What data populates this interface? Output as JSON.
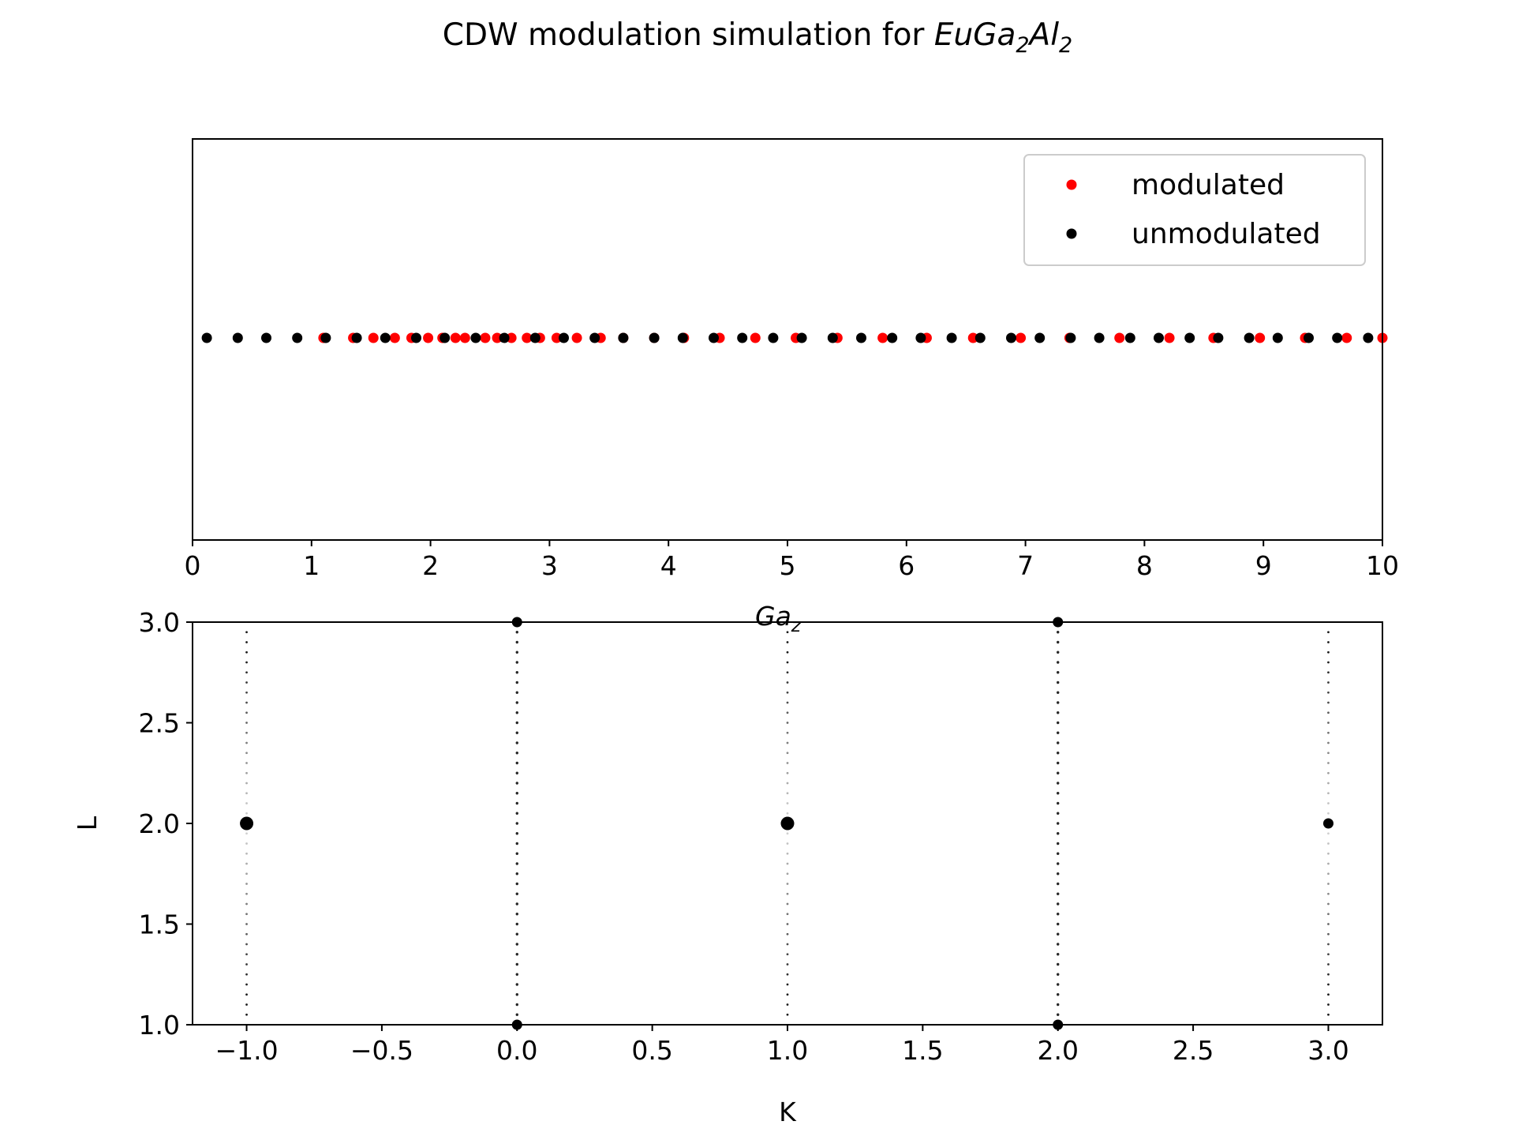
{
  "figure": {
    "title_prefix": "CDW modulation simulation for ",
    "title_chem": {
      "el1": "EuGa",
      "sub1": "2",
      "el2": "Al",
      "sub2": "2"
    }
  },
  "chart_data": [
    {
      "type": "scatter",
      "xlabel": "Ga",
      "xlabel_sub": "z",
      "ylabel": "",
      "xlim": [
        0,
        10
      ],
      "xticks": [
        "0",
        "1",
        "2",
        "3",
        "4",
        "5",
        "6",
        "7",
        "8",
        "9",
        "10"
      ],
      "yticks_visible": false,
      "grid": false,
      "legend_placement": "top-right",
      "series": [
        {
          "name": "modulated",
          "color": "#ff0000",
          "x": [
            1.1,
            1.35,
            1.52,
            1.7,
            1.84,
            1.98,
            2.1,
            2.21,
            2.29,
            2.46,
            2.56,
            2.68,
            2.81,
            2.92,
            3.06,
            3.23,
            3.43,
            3.62,
            3.88,
            4.13,
            4.43,
            4.73,
            5.07,
            5.42,
            5.8,
            6.17,
            6.56,
            6.96,
            7.37,
            7.79,
            8.21,
            8.58,
            8.97,
            9.35,
            9.7,
            10.0
          ],
          "y": [
            0,
            0,
            0,
            0,
            0,
            0,
            0,
            0,
            0,
            0,
            0,
            0,
            0,
            0,
            0,
            0,
            0,
            0,
            0,
            0,
            0,
            0,
            0,
            0,
            0,
            0,
            0,
            0,
            0,
            0,
            0,
            0,
            0,
            0,
            0,
            0
          ]
        },
        {
          "name": "unmodulated",
          "color": "#000000",
          "x": [
            0.12,
            0.38,
            0.62,
            0.88,
            1.12,
            1.38,
            1.62,
            1.88,
            2.12,
            2.38,
            2.62,
            2.88,
            3.12,
            3.38,
            3.62,
            3.88,
            4.12,
            4.38,
            4.62,
            4.88,
            5.12,
            5.38,
            5.62,
            5.88,
            6.12,
            6.38,
            6.62,
            6.88,
            7.12,
            7.38,
            7.62,
            7.88,
            8.12,
            8.38,
            8.62,
            8.88,
            9.12,
            9.38,
            9.62,
            9.88
          ],
          "y": [
            0,
            0,
            0,
            0,
            0,
            0,
            0,
            0,
            0,
            0,
            0,
            0,
            0,
            0,
            0,
            0,
            0,
            0,
            0,
            0,
            0,
            0,
            0,
            0,
            0,
            0,
            0,
            0,
            0,
            0,
            0,
            0,
            0,
            0,
            0,
            0,
            0,
            0,
            0,
            0
          ]
        }
      ]
    },
    {
      "type": "scatter",
      "xlabel": "K",
      "ylabel": "L",
      "xlim": [
        -1.2,
        3.2
      ],
      "ylim": [
        1.0,
        3.0
      ],
      "xticks": [
        "−1.0",
        "−0.5",
        "0.0",
        "0.5",
        "1.0",
        "1.5",
        "2.0",
        "2.5",
        "3.0"
      ],
      "yticks": [
        "1.0",
        "1.5",
        "2.0",
        "2.5",
        "3.0"
      ],
      "grid": false,
      "color": "#000000",
      "bragg_peaks": [
        {
          "K": -1.0,
          "L": 2.0,
          "size": "large"
        },
        {
          "K": 1.0,
          "L": 2.0,
          "size": "large"
        },
        {
          "K": 3.0,
          "L": 2.0,
          "size": "medium"
        },
        {
          "K": 0.0,
          "L": 3.0,
          "size": "medium"
        },
        {
          "K": 0.0,
          "L": 1.0,
          "size": "medium"
        },
        {
          "K": 2.0,
          "L": 3.0,
          "size": "medium"
        },
        {
          "K": 2.0,
          "L": 1.0,
          "size": "medium"
        }
      ],
      "satellite_rows_K": [
        -1.0,
        0.0,
        1.0,
        2.0,
        3.0
      ],
      "satellite_L_range": [
        1.0,
        3.0
      ]
    }
  ]
}
